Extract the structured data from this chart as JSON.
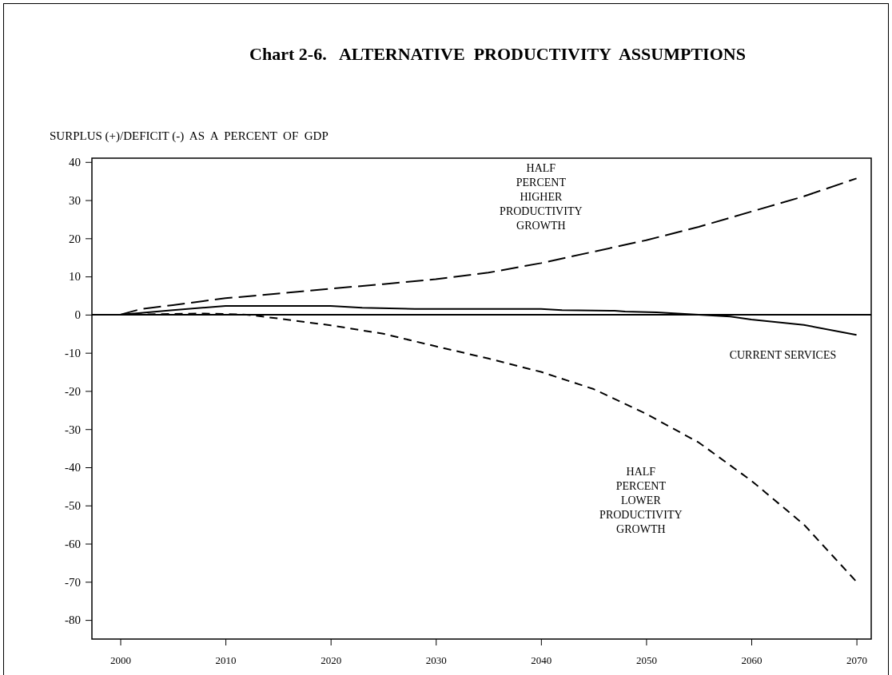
{
  "chart_data": {
    "type": "line",
    "title": "Chart 2-6.   ALTERNATIVE  PRODUCTIVITY  ASSUMPTIONS",
    "ylabel": "SURPLUS (+)/DEFICIT (-)  AS  A  PERCENT  OF  GDP",
    "xlim": [
      1997.3,
      2071.4
    ],
    "ylim": [
      -85,
      41
    ],
    "xticks": [
      2000,
      2010,
      2020,
      2030,
      2040,
      2050,
      2060,
      2070
    ],
    "yticks": [
      40,
      30,
      20,
      10,
      0,
      -10,
      -20,
      -30,
      -40,
      -50,
      -60,
      -70,
      -80
    ],
    "grid": false,
    "legend": false,
    "marker": "none",
    "ref_lines": [
      {
        "axis": "y",
        "value": 0,
        "color": "#000000",
        "line_style": "solid"
      }
    ],
    "series": [
      {
        "name": "HALF PERCENT HIGHER PRODUCTIVITY GROWTH",
        "color": "#000000",
        "line_style": "dashed",
        "x": [
          2000,
          2002,
          2005,
          2010,
          2015,
          2020,
          2025,
          2030,
          2035,
          2040,
          2045,
          2050,
          2055,
          2060,
          2065,
          2070
        ],
        "values": [
          0,
          1.5,
          2.5,
          4.3,
          5.5,
          6.8,
          8,
          9.3,
          11,
          13.5,
          16.5,
          19.5,
          23,
          27,
          31,
          35.7
        ]
      },
      {
        "name": "CURRENT SERVICES",
        "color": "#000000",
        "line_style": "solid",
        "x": [
          2000,
          2005,
          2010,
          2020,
          2023,
          2028,
          2040,
          2042,
          2047,
          2048,
          2051,
          2055,
          2058,
          2060,
          2065,
          2070
        ],
        "values": [
          0,
          1.2,
          2.3,
          2.3,
          1.8,
          1.5,
          1.5,
          1.2,
          1,
          0.8,
          0.6,
          0,
          -0.5,
          -1.3,
          -2.7,
          -5.3
        ]
      },
      {
        "name": "HALF PERCENT LOWER PRODUCTIVITY GROWTH",
        "color": "#000000",
        "line_style": "dashed",
        "x": [
          2000,
          2008,
          2012,
          2015,
          2020,
          2025,
          2030,
          2035,
          2040,
          2045,
          2050,
          2055,
          2060,
          2065,
          2070
        ],
        "values": [
          0,
          0.3,
          0,
          -1,
          -2.8,
          -5,
          -8.3,
          -11.5,
          -15,
          -19.5,
          -26,
          -33.5,
          -43.5,
          -55,
          -70
        ]
      }
    ]
  }
}
